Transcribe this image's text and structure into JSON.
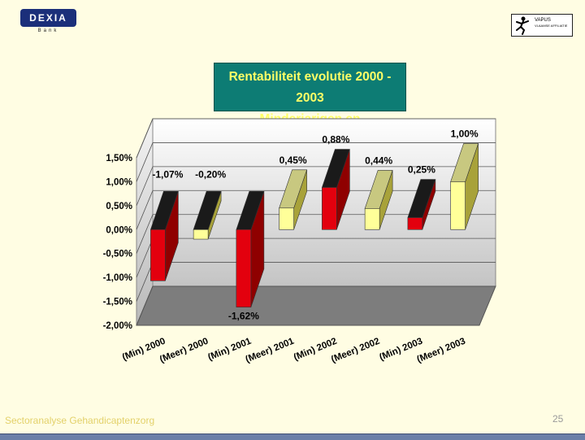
{
  "branding": {
    "left_logo_text": "DEXIA",
    "left_logo_sub": "Bank",
    "right_logo_line1": "VAPUS",
    "right_logo_line2": "VLAAMSE AFFILIATIE"
  },
  "title": {
    "line1": "Rentabiliteit evolutie 2000 - 2003",
    "line2": "Minderjarigen  en Meerderjarigen"
  },
  "colors": {
    "min_front": "#e3000e",
    "min_side": "#8f0000",
    "min_top": "#1a1a1a",
    "meer_front": "#ffff99",
    "meer_side": "#a8a23a",
    "meer_top": "#c8c880"
  },
  "chart_data": {
    "type": "bar",
    "title": "Rentabiliteit evolutie 2000 - 2003",
    "categories": [
      "(Min) 2000",
      "(Meer) 2000",
      "(Min) 2001",
      "(Meer) 2001",
      "(Min) 2002",
      "(Meer) 2002",
      "(Min) 2003",
      "(Meer) 2003"
    ],
    "values": [
      -1.07,
      -0.2,
      -1.62,
      0.45,
      0.88,
      0.44,
      0.25,
      1.0
    ],
    "data_labels": [
      "-1,07%",
      "-0,20%",
      "-1,62%",
      "0,45%",
      "0,88%",
      "0,44%",
      "0,25%",
      "1,00%"
    ],
    "group": [
      "Min",
      "Meer",
      "Min",
      "Meer",
      "Min",
      "Meer",
      "Min",
      "Meer"
    ],
    "ylim": [
      -2.0,
      1.5
    ],
    "yticks": [
      1.5,
      1.0,
      0.5,
      0.0,
      -0.5,
      -1.0,
      -1.5,
      -2.0
    ],
    "ytick_labels": [
      "1,50%",
      "1,00%",
      "0,50%",
      "0,00%",
      "-0,50%",
      "-1,00%",
      "-1,50%",
      "-2,00%"
    ],
    "xlabel": "",
    "ylabel": "",
    "grid": true
  },
  "footer": {
    "left": "Sectoranalyse Gehandicaptenzorg",
    "page": "25"
  }
}
